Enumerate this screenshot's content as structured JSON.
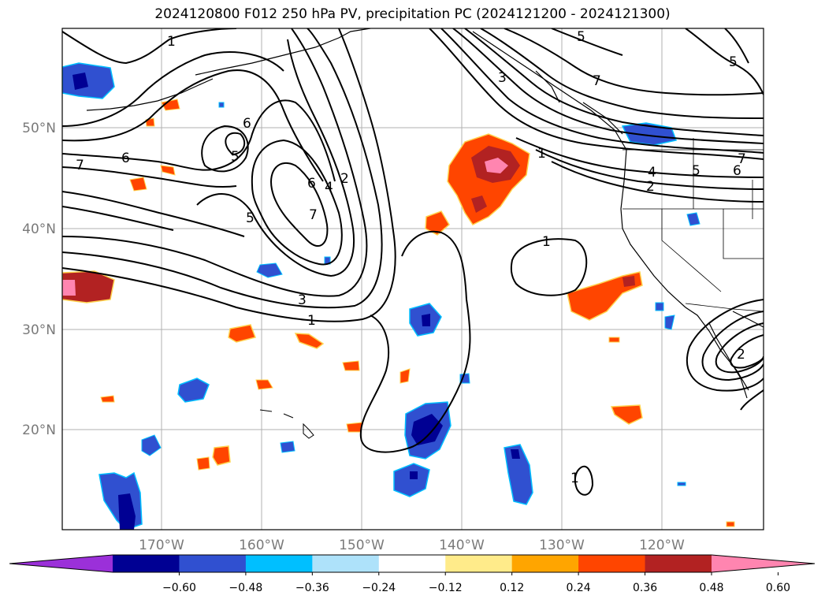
{
  "title": "2024120800 F012 250 hPa PV, precipitation PC (2024121200 - 2024121300)",
  "lat_labels": [
    "50°N",
    "40°N",
    "30°N",
    "20°N"
  ],
  "lon_labels": [
    "170°W",
    "160°W",
    "150°W",
    "140°W",
    "130°W",
    "120°W"
  ],
  "colorbar": {
    "ticks": [
      "−0.60",
      "−0.48",
      "−0.36",
      "−0.24",
      "−0.12",
      "0.12",
      "0.24",
      "0.36",
      "0.48",
      "0.60"
    ],
    "colors": [
      "#9b30d9",
      "#000093",
      "#3050d0",
      "#00bfff",
      "#aee2fa",
      "#ffffff",
      "#ffeb8a",
      "#ffa500",
      "#ff4500",
      "#b22222",
      "#ff85b0"
    ]
  },
  "contour_labels": {
    "c1": "1",
    "c2": "1",
    "c3": "1",
    "c4": "1",
    "c5": "1",
    "c6": "2",
    "c7": "2",
    "c8": "2",
    "c9": "3",
    "c10": "3",
    "c11": "4",
    "c12": "4",
    "c13": "5",
    "c14": "5",
    "c15": "5",
    "c16": "5",
    "c17": "5",
    "c18": "6",
    "c19": "6",
    "c20": "6",
    "c21": "6",
    "c22": "7",
    "c23": "7",
    "c24": "7",
    "c25": "7"
  }
}
